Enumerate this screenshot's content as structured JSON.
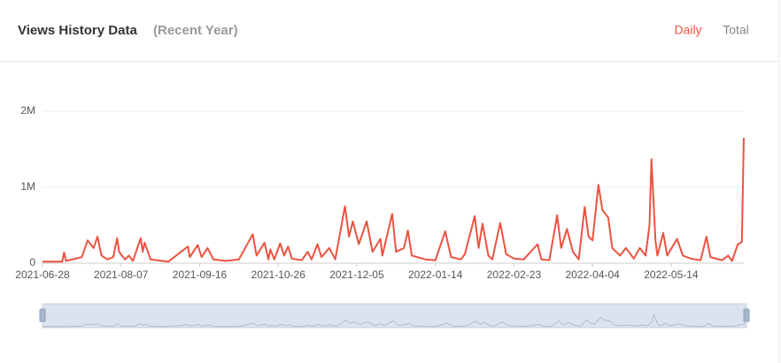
{
  "header": {
    "title": "Views History Data",
    "subtitle": "(Recent Year)",
    "tabs": [
      "Daily",
      "Total"
    ],
    "active_tab": 0
  },
  "chart_data": {
    "type": "line",
    "x": [
      "2021-06-28",
      "2021-07-08",
      "2021-07-09",
      "2021-07-10",
      "2021-07-18",
      "2021-07-21",
      "2021-07-24",
      "2021-07-26",
      "2021-07-28",
      "2021-07-31",
      "2021-08-03",
      "2021-08-05",
      "2021-08-06",
      "2021-08-09",
      "2021-08-11",
      "2021-08-13",
      "2021-08-17",
      "2021-08-18",
      "2021-08-19",
      "2021-08-22",
      "2021-08-31",
      "2021-09-10",
      "2021-09-11",
      "2021-09-15",
      "2021-09-17",
      "2021-09-20",
      "2021-09-23",
      "2021-09-29",
      "2021-10-06",
      "2021-10-13",
      "2021-10-15",
      "2021-10-19",
      "2021-10-21",
      "2021-10-22",
      "2021-10-24",
      "2021-10-27",
      "2021-10-29",
      "2021-10-31",
      "2021-11-02",
      "2021-11-07",
      "2021-11-10",
      "2021-11-12",
      "2021-11-15",
      "2021-11-17",
      "2021-11-21",
      "2021-11-24",
      "2021-11-29",
      "2021-12-01",
      "2021-12-03",
      "2021-12-06",
      "2021-12-10",
      "2021-12-13",
      "2021-12-17",
      "2021-12-18",
      "2021-12-23",
      "2021-12-25",
      "2021-12-29",
      "2021-12-31",
      "2022-01-02",
      "2022-01-09",
      "2022-01-14",
      "2022-01-19",
      "2022-01-22",
      "2022-01-27",
      "2022-01-29",
      "2022-02-03",
      "2022-02-05",
      "2022-02-07",
      "2022-02-10",
      "2022-02-12",
      "2022-02-16",
      "2022-02-19",
      "2022-02-23",
      "2022-02-28",
      "2022-03-07",
      "2022-03-09",
      "2022-03-13",
      "2022-03-17",
      "2022-03-19",
      "2022-03-22",
      "2022-03-25",
      "2022-03-28",
      "2022-03-31",
      "2022-04-02",
      "2022-04-04",
      "2022-04-07",
      "2022-04-09",
      "2022-04-12",
      "2022-04-14",
      "2022-04-18",
      "2022-04-21",
      "2022-04-25",
      "2022-04-28",
      "2022-05-01",
      "2022-05-03",
      "2022-05-04",
      "2022-05-06",
      "2022-05-07",
      "2022-05-10",
      "2022-05-12",
      "2022-05-17",
      "2022-05-20",
      "2022-05-24",
      "2022-05-29",
      "2022-06-01",
      "2022-06-03",
      "2022-06-09",
      "2022-06-12",
      "2022-06-14",
      "2022-06-17",
      "2022-06-19",
      "2022-06-20"
    ],
    "series": [
      {
        "color": "#ec5340",
        "values": [
          20000,
          20000,
          140000,
          30000,
          80000,
          300000,
          200000,
          350000,
          100000,
          50000,
          80000,
          330000,
          150000,
          50000,
          100000,
          30000,
          330000,
          150000,
          270000,
          50000,
          20000,
          220000,
          80000,
          240000,
          80000,
          200000,
          50000,
          30000,
          50000,
          380000,
          100000,
          270000,
          50000,
          180000,
          50000,
          260000,
          100000,
          220000,
          60000,
          40000,
          150000,
          50000,
          250000,
          80000,
          200000,
          50000,
          750000,
          350000,
          550000,
          250000,
          550000,
          150000,
          320000,
          100000,
          650000,
          150000,
          200000,
          430000,
          100000,
          50000,
          40000,
          420000,
          80000,
          50000,
          120000,
          620000,
          200000,
          520000,
          100000,
          50000,
          530000,
          120000,
          60000,
          50000,
          250000,
          50000,
          40000,
          630000,
          200000,
          450000,
          150000,
          50000,
          740000,
          350000,
          300000,
          1030000,
          700000,
          600000,
          200000,
          100000,
          200000,
          60000,
          200000,
          100000,
          500000,
          1370000,
          300000,
          100000,
          400000,
          100000,
          320000,
          100000,
          60000,
          40000,
          350000,
          80000,
          40000,
          100000,
          30000,
          250000,
          280000,
          1650000
        ]
      }
    ],
    "xlim": [
      "2021-06-28",
      "2022-06-20"
    ],
    "xticks": [
      "2021-06-28",
      "2021-08-07",
      "2021-09-16",
      "2021-10-26",
      "2021-12-05",
      "2022-01-14",
      "2022-02-23",
      "2022-04-04",
      "2022-05-14"
    ],
    "ylim": [
      0,
      2000000
    ],
    "yticks": [
      0,
      {
        "value": 1000000,
        "label": "1M"
      },
      {
        "value": 2000000,
        "label": "2M"
      }
    ],
    "grid": true
  }
}
